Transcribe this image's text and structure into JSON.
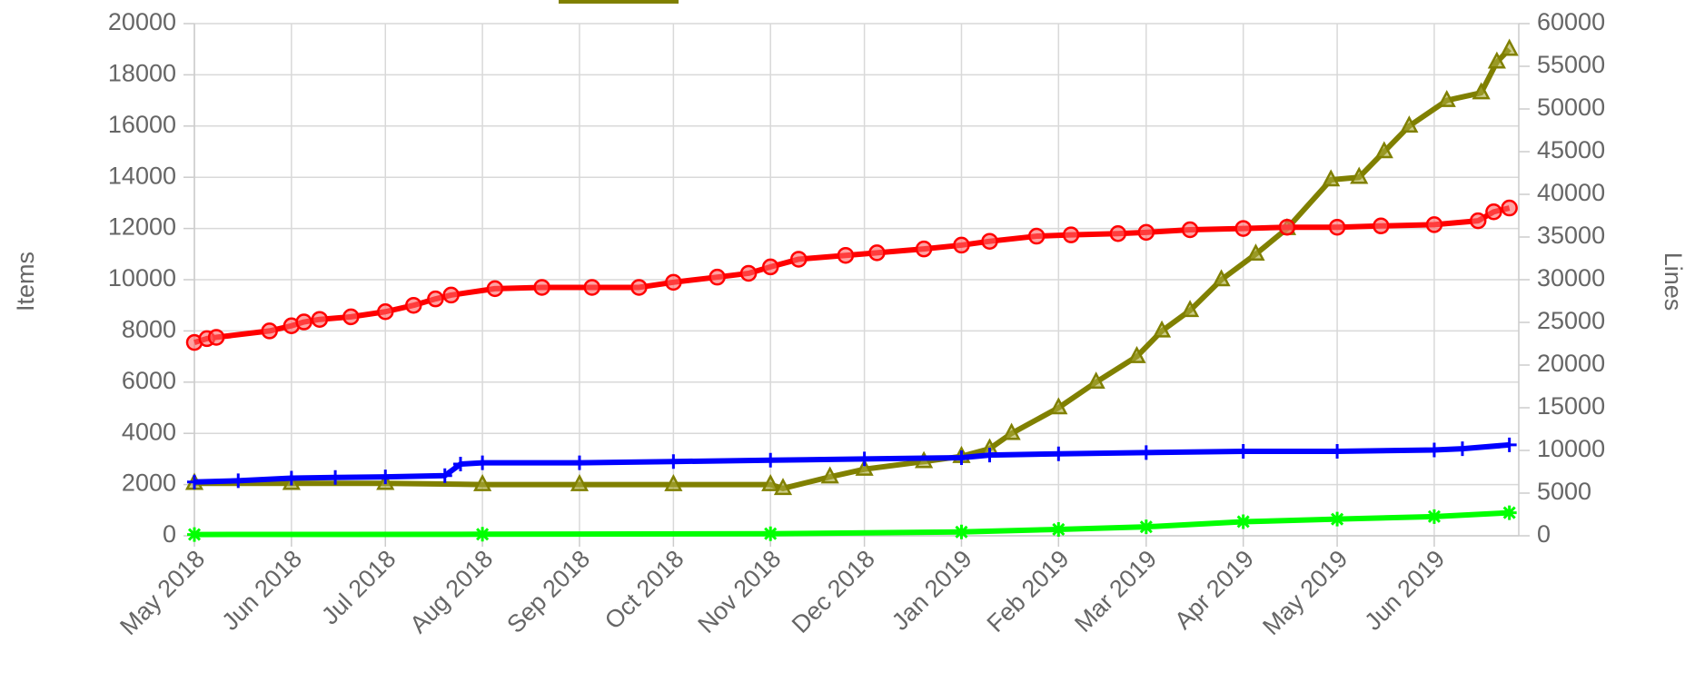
{
  "chart_data": {
    "type": "line",
    "ylabel": "Items",
    "y2label": "Lines",
    "xlim": [
      "2018-05-01",
      "2019-06-28"
    ],
    "xticks": [
      {
        "value": "2018-05-01",
        "label": "May 2018"
      },
      {
        "value": "2018-06-01",
        "label": "Jun 2018"
      },
      {
        "value": "2018-07-01",
        "label": "Jul 2018"
      },
      {
        "value": "2018-08-01",
        "label": "Aug 2018"
      },
      {
        "value": "2018-09-01",
        "label": "Sep 2018"
      },
      {
        "value": "2018-10-01",
        "label": "Oct 2018"
      },
      {
        "value": "2018-11-01",
        "label": "Nov 2018"
      },
      {
        "value": "2018-12-01",
        "label": "Dec 2018"
      },
      {
        "value": "2019-01-01",
        "label": "Jan 2019"
      },
      {
        "value": "2019-02-01",
        "label": "Feb 2019"
      },
      {
        "value": "2019-03-01",
        "label": "Mar 2019"
      },
      {
        "value": "2019-04-01",
        "label": "Apr 2019"
      },
      {
        "value": "2019-05-01",
        "label": "May 2019"
      },
      {
        "value": "2019-06-01",
        "label": "Jun 2019"
      }
    ],
    "ylim": [
      0,
      20000
    ],
    "yticks": [
      0,
      2000,
      4000,
      6000,
      8000,
      10000,
      12000,
      14000,
      16000,
      18000,
      20000
    ],
    "y2lim": [
      0,
      60000
    ],
    "y2ticks": [
      0,
      5000,
      10000,
      15000,
      20000,
      25000,
      30000,
      35000,
      40000,
      45000,
      50000,
      55000,
      60000
    ],
    "grid": true,
    "series": [
      {
        "color": "#ff0000",
        "marker": "circle",
        "x": [
          "2018-05-01",
          "2018-05-05",
          "2018-05-08",
          "2018-05-25",
          "2018-06-01",
          "2018-06-05",
          "2018-06-10",
          "2018-06-20",
          "2018-07-01",
          "2018-07-10",
          "2018-07-17",
          "2018-07-22",
          "2018-08-05",
          "2018-08-20",
          "2018-09-05",
          "2018-09-20",
          "2018-10-01",
          "2018-10-15",
          "2018-10-25",
          "2018-11-01",
          "2018-11-10",
          "2018-11-25",
          "2018-12-05",
          "2018-12-20",
          "2019-01-01",
          "2019-01-10",
          "2019-01-25",
          "2019-02-05",
          "2019-02-20",
          "2019-03-01",
          "2019-03-15",
          "2019-04-01",
          "2019-04-15",
          "2019-05-01",
          "2019-05-15",
          "2019-06-01",
          "2019-06-15",
          "2019-06-20",
          "2019-06-25"
        ],
        "values": [
          7550,
          7700,
          7750,
          8000,
          8200,
          8350,
          8450,
          8550,
          8750,
          9000,
          9250,
          9400,
          9650,
          9700,
          9700,
          9700,
          9900,
          10100,
          10250,
          10500,
          10800,
          10950,
          11050,
          11200,
          11350,
          11500,
          11700,
          11750,
          11800,
          11850,
          11950,
          12000,
          12050,
          12050,
          12100,
          12150,
          12300,
          12650,
          12800
        ]
      },
      {
        "color": "#0000ff",
        "marker": "plus",
        "x": [
          "2018-05-01",
          "2018-05-15",
          "2018-06-01",
          "2018-06-15",
          "2018-07-01",
          "2018-07-20",
          "2018-07-25",
          "2018-08-01",
          "2018-09-01",
          "2018-10-01",
          "2018-11-01",
          "2018-12-01",
          "2019-01-01",
          "2019-01-10",
          "2019-02-01",
          "2019-03-01",
          "2019-04-01",
          "2019-05-01",
          "2019-06-01",
          "2019-06-10",
          "2019-06-25"
        ],
        "values": [
          2100,
          2150,
          2250,
          2280,
          2300,
          2350,
          2800,
          2850,
          2850,
          2900,
          2950,
          3000,
          3050,
          3150,
          3200,
          3250,
          3300,
          3300,
          3350,
          3400,
          3550
        ]
      },
      {
        "color": "#808000",
        "marker": "triangle",
        "x": [
          "2018-05-01",
          "2018-06-01",
          "2018-07-01",
          "2018-08-01",
          "2018-09-01",
          "2018-10-01",
          "2018-11-01",
          "2018-11-05",
          "2018-11-20",
          "2018-12-01",
          "2018-12-20",
          "2019-01-01",
          "2019-01-10",
          "2019-01-17",
          "2019-02-01",
          "2019-02-13",
          "2019-02-26",
          "2019-03-06",
          "2019-03-15",
          "2019-03-25",
          "2019-04-05",
          "2019-04-15",
          "2019-04-29",
          "2019-05-08",
          "2019-05-16",
          "2019-05-24",
          "2019-06-05",
          "2019-06-16",
          "2019-06-21",
          "2019-06-25"
        ],
        "values": [
          2050,
          2050,
          2050,
          2000,
          2000,
          2000,
          2000,
          1850,
          2300,
          2600,
          2900,
          3100,
          3400,
          4000,
          5000,
          6000,
          7000,
          8000,
          8800,
          10000,
          11000,
          12000,
          13900,
          14000,
          15000,
          16000,
          17000,
          17300,
          18500,
          19000
        ]
      },
      {
        "color": "#00ff00",
        "marker": "star",
        "x": [
          "2018-05-01",
          "2018-08-01",
          "2018-11-01",
          "2019-01-01",
          "2019-02-01",
          "2019-03-01",
          "2019-04-01",
          "2019-05-01",
          "2019-06-01",
          "2019-06-25"
        ],
        "values": [
          50,
          60,
          80,
          150,
          250,
          350,
          550,
          650,
          750,
          900
        ]
      }
    ]
  }
}
